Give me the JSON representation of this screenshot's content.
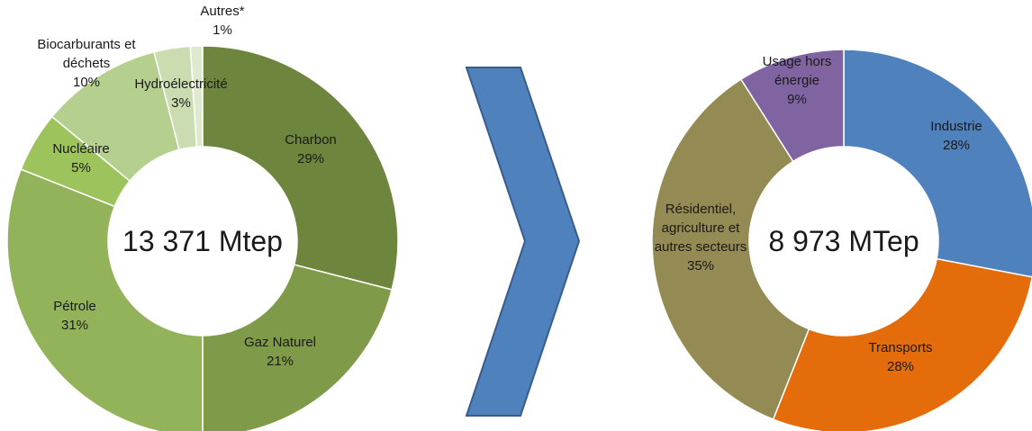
{
  "chart_data": [
    {
      "type": "pie",
      "center_label": "13 371 Mtep",
      "slices": [
        {
          "name": "Charbon",
          "value": 29,
          "label_lines": [
            "Charbon",
            "29%"
          ],
          "color": "#6d853c"
        },
        {
          "name": "Gaz Naturel",
          "value": 21,
          "label_lines": [
            "Gaz Naturel",
            "21%"
          ],
          "color": "#7f9a48"
        },
        {
          "name": "Pétrole",
          "value": 31,
          "label_lines": [
            "Pétrole",
            "31%"
          ],
          "color": "#93b35b"
        },
        {
          "name": "Nucléaire",
          "value": 5,
          "label_lines": [
            "Nucléaire",
            "5%"
          ],
          "color": "#9dc35c"
        },
        {
          "name": "Biocarburants et déchets",
          "value": 10,
          "label_lines": [
            "Biocarburants et",
            "déchets",
            "10%"
          ],
          "color": "#b5cf8f"
        },
        {
          "name": "Hydroélectricité",
          "value": 3,
          "label_lines": [
            "Hydroélectricité",
            "3%"
          ],
          "color": "#cbdcb0"
        },
        {
          "name": "Autres*",
          "value": 1,
          "label_lines": [
            "Autres*",
            "1%"
          ],
          "color": "#dfe9cf"
        }
      ]
    },
    {
      "type": "pie",
      "center_label": "8 973 MTep",
      "slices": [
        {
          "name": "Industrie",
          "value": 28,
          "label_lines": [
            "Industrie",
            "28%"
          ],
          "color": "#4f81bd"
        },
        {
          "name": "Transports",
          "value": 28,
          "label_lines": [
            "Transports",
            "28%"
          ],
          "color": "#e46c0a"
        },
        {
          "name": "Résidentiel, agriculture et autres secteurs",
          "value": 35,
          "label_lines": [
            "Résidentiel,",
            "agriculture et",
            "autres secteurs",
            "35%"
          ],
          "color": "#948a54"
        },
        {
          "name": "Usage hors énergie",
          "value": 9,
          "label_lines": [
            "Usage hors",
            "énergie",
            "9%"
          ],
          "color": "#8064a2"
        }
      ]
    }
  ],
  "arrow_color": "#4f81bd"
}
